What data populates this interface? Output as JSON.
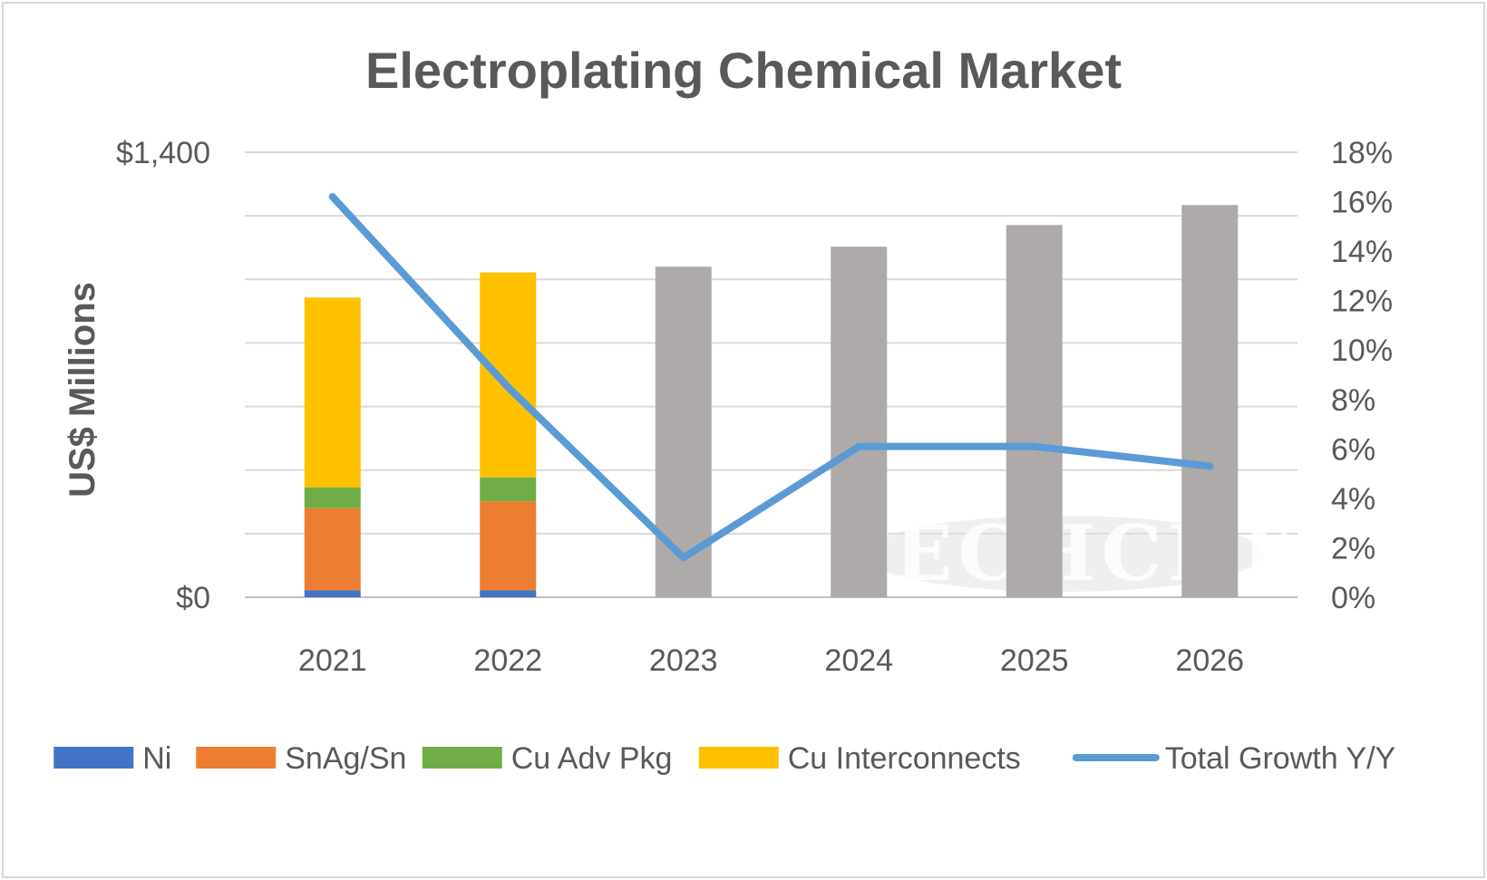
{
  "chart_data": {
    "type": "bar",
    "stacked": true,
    "title": "Electroplating Chemical Market",
    "ylabel": "US$ Millions",
    "ylim": [
      0,
      1400
    ],
    "y_gridlines": [
      0,
      200,
      400,
      600,
      800,
      1000,
      1200,
      1400
    ],
    "y_tick_labels": [
      {
        "value": 1400,
        "label": "$1,400"
      },
      {
        "value": 0,
        "label": "$0"
      }
    ],
    "y2lim": [
      0,
      18
    ],
    "y2_ticks": [
      0,
      2,
      4,
      6,
      8,
      10,
      12,
      14,
      16,
      18
    ],
    "y2_tick_labels": [
      "0%",
      "2%",
      "4%",
      "6%",
      "8%",
      "10%",
      "12%",
      "14%",
      "16%",
      "18%"
    ],
    "categories": [
      "2021",
      "2022",
      "2023",
      "2024",
      "2025",
      "2026"
    ],
    "grid": true,
    "legend_position": "bottom",
    "watermark": "TECHCET",
    "series": [
      {
        "name": "Ni",
        "color": "#4472C4",
        "values": [
          22,
          22,
          null,
          null,
          null,
          null
        ]
      },
      {
        "name": "SnAg/Sn",
        "color": "#ED7D31",
        "values": [
          258,
          280,
          null,
          null,
          null,
          null
        ]
      },
      {
        "name": "Cu Adv Pkg",
        "color": "#70AD47",
        "values": [
          65,
          75,
          null,
          null,
          null,
          null
        ]
      },
      {
        "name": "Cu Interconnects",
        "color": "#FFC000",
        "values": [
          598,
          645,
          null,
          null,
          null,
          null
        ]
      }
    ],
    "totals_unlabeled": {
      "color": "#AEAAAA",
      "values": [
        null,
        null,
        1040,
        1103,
        1171,
        1234
      ]
    },
    "line_series": {
      "name": "Total Growth Y/Y",
      "color": "#5B9BD5",
      "axis": "right",
      "values": [
        16.2,
        8.5,
        1.6,
        6.1,
        6.1,
        5.3
      ]
    }
  }
}
